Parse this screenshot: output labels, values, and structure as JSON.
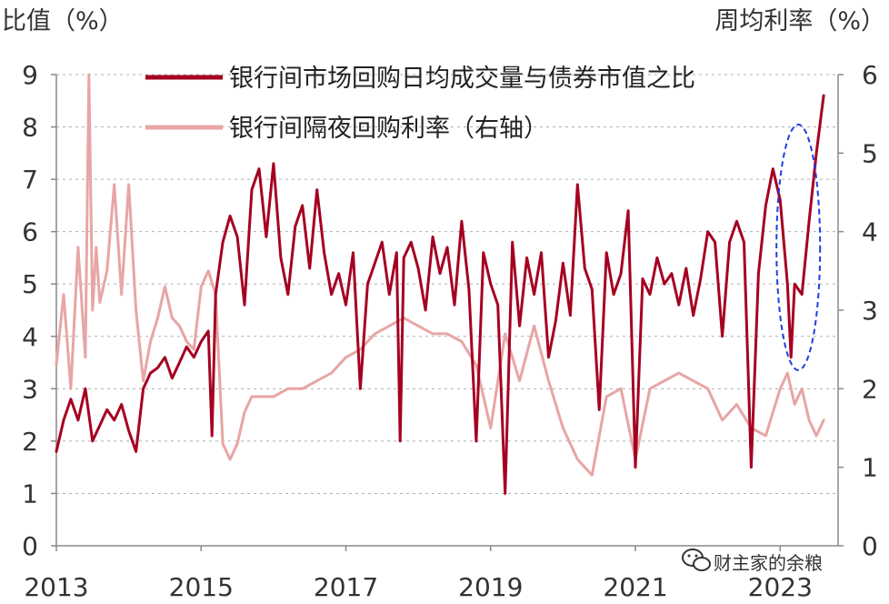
{
  "chart_data": {
    "type": "line",
    "left_axis_label": "比值（%）",
    "right_axis_label": "周均利率（%）",
    "left_ticks": [
      0,
      1,
      2,
      3,
      4,
      5,
      6,
      7,
      8,
      9
    ],
    "right_ticks": [
      0,
      1,
      2,
      3,
      4,
      5,
      6
    ],
    "x_ticks": [
      2013,
      2015,
      2017,
      2019,
      2021,
      2023
    ],
    "xlim": [
      2013.0,
      2023.8
    ],
    "ylim_left": [
      0,
      9
    ],
    "ylim_right": [
      0,
      6
    ],
    "grid": true,
    "legend_placement": "top-center",
    "series": [
      {
        "name": "银行间市场回购日均成交量与债券市值之比",
        "axis": "left",
        "color": "#A50021",
        "x": [
          2013.0,
          2013.1,
          2013.2,
          2013.3,
          2013.4,
          2013.5,
          2013.6,
          2013.7,
          2013.8,
          2013.9,
          2014.0,
          2014.1,
          2014.2,
          2014.3,
          2014.4,
          2014.5,
          2014.6,
          2014.7,
          2014.8,
          2014.9,
          2015.0,
          2015.1,
          2015.15,
          2015.2,
          2015.3,
          2015.4,
          2015.5,
          2015.6,
          2015.7,
          2015.8,
          2015.9,
          2016.0,
          2016.1,
          2016.2,
          2016.3,
          2016.4,
          2016.5,
          2016.6,
          2016.7,
          2016.8,
          2016.9,
          2017.0,
          2017.1,
          2017.2,
          2017.3,
          2017.4,
          2017.5,
          2017.6,
          2017.7,
          2017.75,
          2017.8,
          2017.9,
          2018.0,
          2018.1,
          2018.2,
          2018.3,
          2018.4,
          2018.5,
          2018.6,
          2018.7,
          2018.8,
          2018.9,
          2019.0,
          2019.1,
          2019.2,
          2019.3,
          2019.4,
          2019.5,
          2019.6,
          2019.7,
          2019.8,
          2019.9,
          2020.0,
          2020.1,
          2020.2,
          2020.3,
          2020.4,
          2020.5,
          2020.6,
          2020.7,
          2020.8,
          2020.9,
          2021.0,
          2021.1,
          2021.2,
          2021.3,
          2021.4,
          2021.5,
          2021.6,
          2021.7,
          2021.8,
          2021.9,
          2022.0,
          2022.1,
          2022.2,
          2022.3,
          2022.4,
          2022.5,
          2022.6,
          2022.7,
          2022.8,
          2022.9,
          2023.0,
          2023.1,
          2023.15,
          2023.2,
          2023.3,
          2023.4,
          2023.5,
          2023.6
        ],
        "values": [
          1.8,
          2.4,
          2.8,
          2.4,
          3.0,
          2.0,
          2.3,
          2.6,
          2.4,
          2.7,
          2.2,
          1.8,
          3.0,
          3.3,
          3.4,
          3.6,
          3.2,
          3.5,
          3.8,
          3.6,
          3.9,
          4.1,
          2.1,
          4.8,
          5.8,
          6.3,
          5.9,
          4.6,
          6.8,
          7.2,
          5.9,
          7.3,
          5.5,
          4.8,
          6.1,
          6.5,
          5.3,
          6.8,
          5.6,
          4.8,
          5.2,
          4.6,
          5.6,
          3.0,
          5.0,
          5.4,
          5.8,
          4.8,
          5.6,
          2.0,
          5.5,
          5.8,
          5.3,
          4.5,
          5.9,
          5.2,
          5.7,
          4.6,
          6.2,
          4.9,
          2.0,
          5.6,
          5.0,
          4.6,
          1.0,
          5.8,
          4.2,
          5.5,
          4.8,
          5.6,
          3.6,
          4.3,
          5.4,
          4.4,
          6.9,
          5.3,
          4.9,
          2.6,
          5.6,
          4.8,
          5.2,
          6.4,
          1.5,
          5.1,
          4.8,
          5.5,
          5.0,
          5.2,
          4.6,
          5.3,
          4.4,
          5.1,
          6.0,
          5.8,
          4.0,
          5.8,
          6.2,
          5.8,
          1.5,
          5.2,
          6.5,
          7.2,
          6.6,
          5.0,
          3.6,
          5.0,
          4.8,
          6.2,
          7.5,
          8.6
        ],
        "breakpoints": [
          2015.15,
          2017.75,
          2019.25,
          2020.9,
          2022.05
        ]
      },
      {
        "name": "银行间隔夜回购利率（右轴）",
        "axis": "right",
        "color": "#E8A5A5",
        "x": [
          2013.0,
          2013.1,
          2013.2,
          2013.3,
          2013.4,
          2013.45,
          2013.5,
          2013.55,
          2013.6,
          2013.7,
          2013.8,
          2013.9,
          2014.0,
          2014.1,
          2014.2,
          2014.3,
          2014.4,
          2014.5,
          2014.6,
          2014.7,
          2014.8,
          2014.9,
          2015.0,
          2015.1,
          2015.2,
          2015.3,
          2015.4,
          2015.5,
          2015.6,
          2015.7,
          2015.8,
          2015.9,
          2016.0,
          2016.2,
          2016.4,
          2016.6,
          2016.8,
          2017.0,
          2017.2,
          2017.4,
          2017.6,
          2017.8,
          2018.0,
          2018.2,
          2018.4,
          2018.6,
          2018.8,
          2019.0,
          2019.2,
          2019.4,
          2019.6,
          2019.8,
          2020.0,
          2020.2,
          2020.4,
          2020.6,
          2020.8,
          2021.0,
          2021.2,
          2021.4,
          2021.6,
          2021.8,
          2022.0,
          2022.2,
          2022.4,
          2022.6,
          2022.8,
          2023.0,
          2023.1,
          2023.2,
          2023.3,
          2023.4,
          2023.5,
          2023.6
        ],
        "values": [
          2.3,
          3.2,
          2.0,
          3.8,
          2.4,
          6.0,
          3.0,
          3.8,
          3.1,
          3.5,
          4.6,
          3.2,
          4.6,
          3.0,
          2.1,
          2.6,
          2.9,
          3.3,
          2.9,
          2.8,
          2.6,
          2.5,
          3.3,
          3.5,
          3.2,
          1.3,
          1.1,
          1.3,
          1.7,
          1.9,
          1.9,
          1.9,
          1.9,
          2.0,
          2.0,
          2.1,
          2.2,
          2.4,
          2.5,
          2.7,
          2.8,
          2.9,
          2.8,
          2.7,
          2.7,
          2.6,
          2.3,
          1.5,
          2.7,
          2.1,
          2.8,
          2.1,
          1.5,
          1.1,
          0.9,
          1.9,
          2.0,
          1.1,
          2.0,
          2.1,
          2.2,
          2.1,
          2.0,
          1.6,
          1.8,
          1.5,
          1.4,
          2.0,
          2.2,
          1.8,
          2.0,
          1.6,
          1.4,
          1.6
        ]
      }
    ],
    "annotations": [
      {
        "type": "dashed-ellipse",
        "color": "#1F3FE0",
        "x_center": 2023.25,
        "y_center_left": 5.7,
        "note": ""
      }
    ]
  },
  "watermark": {
    "text": "财主家的余粮",
    "icon": "wechat-icon"
  }
}
